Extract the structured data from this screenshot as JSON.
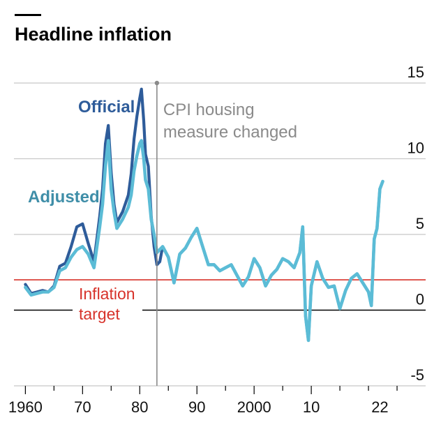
{
  "chart_data": {
    "type": "line",
    "title": "Headline inflation",
    "xlim": [
      1958,
      2030
    ],
    "ylim": [
      -5,
      15
    ],
    "grid": true,
    "y_ticks": [
      15,
      10,
      5,
      0,
      -5
    ],
    "y_tick_labels": [
      "15",
      "10",
      "5",
      "0",
      "-5"
    ],
    "x_ticks": [
      1960,
      1970,
      1980,
      1990,
      2000,
      2010,
      2022
    ],
    "x_tick_labels": [
      "1960",
      "70",
      "80",
      "90",
      "2000",
      "10",
      "22"
    ],
    "target": {
      "value": 2,
      "label_line1": "Inflation",
      "label_line2": "target"
    },
    "event": {
      "x": 1983,
      "label_line1": "CPI housing",
      "label_line2": "measure changed"
    },
    "series": [
      {
        "name": "Official",
        "color": "#2e5c9a",
        "points": [
          [
            1960,
            1.7
          ],
          [
            1961,
            1.1
          ],
          [
            1962,
            1.2
          ],
          [
            1963,
            1.3
          ],
          [
            1964,
            1.2
          ],
          [
            1965,
            1.6
          ],
          [
            1966,
            2.9
          ],
          [
            1967,
            3.1
          ],
          [
            1968,
            4.2
          ],
          [
            1969,
            5.5
          ],
          [
            1970,
            5.7
          ],
          [
            1971,
            4.4
          ],
          [
            1972,
            3.2
          ],
          [
            1973,
            6.2
          ],
          [
            1973.5,
            8.0
          ],
          [
            1974,
            11.0
          ],
          [
            1974.5,
            12.2
          ],
          [
            1975,
            9.1
          ],
          [
            1975.5,
            7.0
          ],
          [
            1976,
            5.8
          ],
          [
            1977,
            6.5
          ],
          [
            1978,
            7.6
          ],
          [
            1978.5,
            9.0
          ],
          [
            1979,
            11.3
          ],
          [
            1979.5,
            12.8
          ],
          [
            1980,
            14.0
          ],
          [
            1980.3,
            14.6
          ],
          [
            1980.7,
            12.5
          ],
          [
            1981,
            10.3
          ],
          [
            1981.5,
            9.5
          ],
          [
            1982,
            6.2
          ],
          [
            1982.5,
            4.2
          ],
          [
            1983,
            3.0
          ],
          [
            1983.5,
            3.2
          ],
          [
            1984,
            4.2
          ],
          [
            1985,
            3.5
          ],
          [
            1986,
            1.8
          ],
          [
            1987,
            3.7
          ],
          [
            1988,
            4.1
          ],
          [
            1989,
            4.8
          ],
          [
            1990,
            5.4
          ],
          [
            1991,
            4.2
          ],
          [
            1992,
            3.0
          ],
          [
            1993,
            3.0
          ],
          [
            1994,
            2.6
          ],
          [
            1995,
            2.8
          ],
          [
            1996,
            3.0
          ],
          [
            1997,
            2.3
          ],
          [
            1998,
            1.6
          ],
          [
            1999,
            2.2
          ],
          [
            2000,
            3.4
          ],
          [
            2001,
            2.8
          ],
          [
            2002,
            1.6
          ],
          [
            2003,
            2.3
          ],
          [
            2004,
            2.7
          ],
          [
            2005,
            3.4
          ],
          [
            2006,
            3.2
          ],
          [
            2007,
            2.8
          ],
          [
            2008,
            3.8
          ],
          [
            2008.5,
            5.5
          ],
          [
            2009,
            -0.4
          ],
          [
            2009.5,
            -2.0
          ],
          [
            2010,
            1.6
          ],
          [
            2011,
            3.2
          ],
          [
            2012,
            2.1
          ],
          [
            2013,
            1.5
          ],
          [
            2014,
            1.6
          ],
          [
            2015,
            0.1
          ],
          [
            2016,
            1.3
          ],
          [
            2017,
            2.1
          ],
          [
            2018,
            2.4
          ],
          [
            2019,
            1.8
          ],
          [
            2020,
            1.2
          ],
          [
            2020.5,
            0.3
          ],
          [
            2021,
            4.7
          ],
          [
            2021.5,
            5.4
          ],
          [
            2022,
            8.0
          ],
          [
            2022.5,
            8.5
          ]
        ]
      },
      {
        "name": "Adjusted",
        "color": "#5bbcd6",
        "points": [
          [
            1960,
            1.5
          ],
          [
            1961,
            1.0
          ],
          [
            1962,
            1.1
          ],
          [
            1963,
            1.2
          ],
          [
            1964,
            1.2
          ],
          [
            1965,
            1.5
          ],
          [
            1966,
            2.6
          ],
          [
            1967,
            2.8
          ],
          [
            1968,
            3.5
          ],
          [
            1969,
            4.0
          ],
          [
            1970,
            4.2
          ],
          [
            1971,
            3.7
          ],
          [
            1972,
            2.8
          ],
          [
            1973,
            5.5
          ],
          [
            1973.5,
            7.0
          ],
          [
            1974,
            9.5
          ],
          [
            1974.5,
            11.2
          ],
          [
            1975,
            8.0
          ],
          [
            1975.5,
            6.5
          ],
          [
            1976,
            5.4
          ],
          [
            1977,
            6.0
          ],
          [
            1978,
            6.8
          ],
          [
            1978.5,
            7.6
          ],
          [
            1979,
            9.2
          ],
          [
            1979.5,
            10.2
          ],
          [
            1980,
            11.0
          ],
          [
            1980.3,
            11.2
          ],
          [
            1980.7,
            10.0
          ],
          [
            1981,
            8.6
          ],
          [
            1981.5,
            8.0
          ],
          [
            1982,
            6.0
          ],
          [
            1982.5,
            5.0
          ],
          [
            1983,
            3.8
          ],
          [
            1983.5,
            4.0
          ],
          [
            1984,
            4.2
          ],
          [
            1985,
            3.5
          ],
          [
            1986,
            1.8
          ],
          [
            1987,
            3.7
          ],
          [
            1988,
            4.1
          ],
          [
            1989,
            4.8
          ],
          [
            1990,
            5.4
          ],
          [
            1991,
            4.2
          ],
          [
            1992,
            3.0
          ],
          [
            1993,
            3.0
          ],
          [
            1994,
            2.6
          ],
          [
            1995,
            2.8
          ],
          [
            1996,
            3.0
          ],
          [
            1997,
            2.3
          ],
          [
            1998,
            1.6
          ],
          [
            1999,
            2.2
          ],
          [
            2000,
            3.4
          ],
          [
            2001,
            2.8
          ],
          [
            2002,
            1.6
          ],
          [
            2003,
            2.3
          ],
          [
            2004,
            2.7
          ],
          [
            2005,
            3.4
          ],
          [
            2006,
            3.2
          ],
          [
            2007,
            2.8
          ],
          [
            2008,
            3.8
          ],
          [
            2008.5,
            5.5
          ],
          [
            2009,
            -0.4
          ],
          [
            2009.5,
            -2.0
          ],
          [
            2010,
            1.6
          ],
          [
            2011,
            3.2
          ],
          [
            2012,
            2.1
          ],
          [
            2013,
            1.5
          ],
          [
            2014,
            1.6
          ],
          [
            2015,
            0.1
          ],
          [
            2016,
            1.3
          ],
          [
            2017,
            2.1
          ],
          [
            2018,
            2.4
          ],
          [
            2019,
            1.8
          ],
          [
            2020,
            1.2
          ],
          [
            2020.5,
            0.3
          ],
          [
            2021,
            4.7
          ],
          [
            2021.5,
            5.4
          ],
          [
            2022,
            8.0
          ],
          [
            2022.5,
            8.5
          ]
        ]
      }
    ]
  },
  "colors": {
    "grid": "#c8c8c8",
    "zero_line": "#000000",
    "target_line": "#d7322a",
    "event_line": "#8a8a8a",
    "official_label": "#2e5c9a",
    "adjusted_label": "#3f8ea8"
  }
}
